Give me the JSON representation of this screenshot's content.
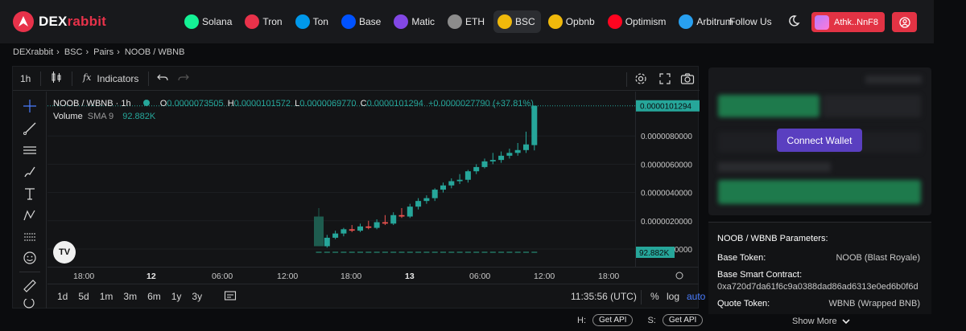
{
  "brand": {
    "name_part1": "DEX",
    "name_part2": "rabbit",
    "accent": "#e8324a"
  },
  "chains": [
    {
      "label": "Solana",
      "icon": "solana-icon",
      "color": "#14f195",
      "active": false
    },
    {
      "label": "Tron",
      "icon": "tron-icon",
      "color": "#e8324a",
      "active": false
    },
    {
      "label": "Ton",
      "icon": "ton-icon",
      "color": "#0098ea",
      "active": false
    },
    {
      "label": "Base",
      "icon": "base-icon",
      "color": "#0052ff",
      "active": false
    },
    {
      "label": "Matic",
      "icon": "matic-icon",
      "color": "#8247e5",
      "active": false
    },
    {
      "label": "ETH",
      "icon": "eth-icon",
      "color": "#8c8c8c",
      "active": false
    },
    {
      "label": "BSC",
      "icon": "bsc-icon",
      "color": "#f0b90b",
      "active": true
    },
    {
      "label": "Opbnb",
      "icon": "opbnb-icon",
      "color": "#f0b90b",
      "active": false
    },
    {
      "label": "Optimism",
      "icon": "optimism-icon",
      "color": "#ff0420",
      "active": false
    },
    {
      "label": "Arbitrum",
      "icon": "arbitrum-icon",
      "color": "#28a0f0",
      "active": false
    }
  ],
  "header": {
    "follow_label": "Follow Us",
    "user_name": "Athk..NnF8"
  },
  "breadcrumb": [
    "DEXrabbit",
    "BSC",
    "Pairs",
    "NOOB / WBNB"
  ],
  "chart_toolbar": {
    "interval": "1h",
    "indicators_label": "Indicators"
  },
  "chart": {
    "symbol_title": "NOOB / WBNB · 1h",
    "ohlc": {
      "O": "0.0000073505",
      "H": "0.0000101572",
      "L": "0.0000069770",
      "C": "0.0000101294",
      "change": "+0.0000027790 (+37.81%)"
    },
    "volume_label": "Volume",
    "volume_ma": "SMA 9",
    "volume_value": "92.882K",
    "last_price_tag": "0.0000101294",
    "volume_tag": "92.882K",
    "tv_logo": "TV"
  },
  "chart_data": {
    "type": "candlestick",
    "price_axis_labels": [
      "0.0000080000",
      "0.0000060000",
      "0.0000040000",
      "0.0000020000",
      "0.0000000000"
    ],
    "price_axis_values": [
      8e-06,
      6e-06,
      4e-06,
      2e-06,
      0
    ],
    "time_axis_labels": [
      "18:00",
      "12",
      "06:00",
      "12:00",
      "18:00",
      "13",
      "06:00",
      "12:00",
      "18:00"
    ],
    "ylim": [
      0,
      1.01572e-05
    ],
    "candles": [
      {
        "o": 2.3e-06,
        "h": 2.9e-06,
        "l": 2e-07,
        "c": 2e-07
      },
      {
        "o": 2e-07,
        "h": 1e-06,
        "l": 1e-07,
        "c": 8e-07
      },
      {
        "o": 8e-07,
        "h": 1.3e-06,
        "l": 7e-07,
        "c": 1.1e-06
      },
      {
        "o": 1.1e-06,
        "h": 1.5e-06,
        "l": 9e-07,
        "c": 1.4e-06
      },
      {
        "o": 1.4e-06,
        "h": 1.7e-06,
        "l": 1.2e-06,
        "c": 1.3e-06
      },
      {
        "o": 1.3e-06,
        "h": 1.8e-06,
        "l": 1.2e-06,
        "c": 1.6e-06
      },
      {
        "o": 1.6e-06,
        "h": 2e-06,
        "l": 1.4e-06,
        "c": 1.5e-06
      },
      {
        "o": 1.5e-06,
        "h": 2.1e-06,
        "l": 1.4e-06,
        "c": 1.9e-06
      },
      {
        "o": 1.9e-06,
        "h": 2.4e-06,
        "l": 1.7e-06,
        "c": 1.8e-06
      },
      {
        "o": 1.8e-06,
        "h": 2.6e-06,
        "l": 1.7e-06,
        "c": 2.4e-06
      },
      {
        "o": 2.4e-06,
        "h": 2.9e-06,
        "l": 2.2e-06,
        "c": 2.3e-06
      },
      {
        "o": 2.3e-06,
        "h": 3.2e-06,
        "l": 2.2e-06,
        "c": 3e-06
      },
      {
        "o": 3e-06,
        "h": 3.6e-06,
        "l": 2.8e-06,
        "c": 3.4e-06
      },
      {
        "o": 3.4e-06,
        "h": 3.8e-06,
        "l": 3.2e-06,
        "c": 3.6e-06
      },
      {
        "o": 3.6e-06,
        "h": 4.3e-06,
        "l": 3.4e-06,
        "c": 4.2e-06
      },
      {
        "o": 4.2e-06,
        "h": 4.7e-06,
        "l": 4e-06,
        "c": 4.5e-06
      },
      {
        "o": 4.5e-06,
        "h": 5e-06,
        "l": 4.3e-06,
        "c": 4.8e-06
      },
      {
        "o": 4.8e-06,
        "h": 5.3e-06,
        "l": 4.6e-06,
        "c": 4.9e-06
      },
      {
        "o": 4.9e-06,
        "h": 5.6e-06,
        "l": 4.7e-06,
        "c": 5.5e-06
      },
      {
        "o": 5.5e-06,
        "h": 6e-06,
        "l": 5.3e-06,
        "c": 5.8e-06
      },
      {
        "o": 5.8e-06,
        "h": 6.4e-06,
        "l": 5.7e-06,
        "c": 6.2e-06
      },
      {
        "o": 6.2e-06,
        "h": 6.8e-06,
        "l": 6e-06,
        "c": 6.3e-06
      },
      {
        "o": 6.3e-06,
        "h": 6.9e-06,
        "l": 6.1e-06,
        "c": 6.6e-06
      },
      {
        "o": 6.6e-06,
        "h": 7.1e-06,
        "l": 6.4e-06,
        "c": 6.8e-06
      },
      {
        "o": 6.8e-06,
        "h": 7.5e-06,
        "l": 6.6e-06,
        "c": 7e-06
      },
      {
        "o": 7e-06,
        "h": 8.3e-06,
        "l": 6.8e-06,
        "c": 7.4e-06
      },
      {
        "o": 7.3505e-06,
        "h": 1.01572e-05,
        "l": 6.977e-06,
        "c": 1.01294e-05
      }
    ]
  },
  "chart_bottom": {
    "ranges": [
      "1d",
      "5d",
      "1m",
      "3m",
      "6m",
      "1y",
      "3y"
    ],
    "time": "11:35:56 (UTC)",
    "pct": "%",
    "log": "log",
    "auto": "auto"
  },
  "trade": {
    "connect_label": "Connect Wallet"
  },
  "params": {
    "title": "NOOB / WBNB Parameters:",
    "base_token_label": "Base Token:",
    "base_token_value": "NOOB (Blast Royale)",
    "contract_label": "Base Smart Contract:",
    "contract_value": "0xa720d7da61f6c9a0388dad86ad6313e0ed6b0f6d",
    "quote_token_label": "Quote Token:",
    "quote_token_value": "WBNB (Wrapped BNB)",
    "show_more": "Show More"
  },
  "api": {
    "h_label": "H:",
    "s_label": "S:",
    "get_api": "Get API"
  },
  "colors": {
    "up": "#26a69a",
    "down": "#ef5350",
    "accent_purple": "#5a3fc0"
  }
}
